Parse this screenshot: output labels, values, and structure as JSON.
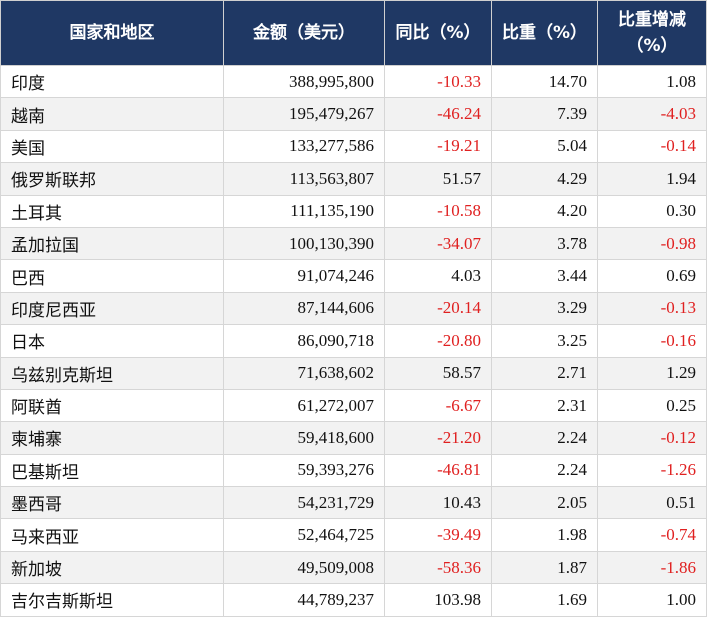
{
  "table": {
    "header": [
      "国家和地区",
      "金额（美元）",
      "同比（%）",
      "比重（%）",
      "比重增减（%）"
    ],
    "rows": [
      [
        "印度",
        "388,995,800",
        "-10.33",
        "14.70",
        "1.08"
      ],
      [
        "越南",
        "195,479,267",
        "-46.24",
        "7.39",
        "-4.03"
      ],
      [
        "美国",
        "133,277,586",
        "-19.21",
        "5.04",
        "-0.14"
      ],
      [
        "俄罗斯联邦",
        "113,563,807",
        "51.57",
        "4.29",
        "1.94"
      ],
      [
        "土耳其",
        "111,135,190",
        "-10.58",
        "4.20",
        "0.30"
      ],
      [
        "孟加拉国",
        "100,130,390",
        "-34.07",
        "3.78",
        "-0.98"
      ],
      [
        "巴西",
        "91,074,246",
        "4.03",
        "3.44",
        "0.69"
      ],
      [
        "印度尼西亚",
        "87,144,606",
        "-20.14",
        "3.29",
        "-0.13"
      ],
      [
        "日本",
        "86,090,718",
        "-20.80",
        "3.25",
        "-0.16"
      ],
      [
        "乌兹别克斯坦",
        "71,638,602",
        "58.57",
        "2.71",
        "1.29"
      ],
      [
        "阿联酋",
        "61,272,007",
        "-6.67",
        "2.31",
        "0.25"
      ],
      [
        "柬埔寨",
        "59,418,600",
        "-21.20",
        "2.24",
        "-0.12"
      ],
      [
        "巴基斯坦",
        "59,393,276",
        "-46.81",
        "2.24",
        "-1.26"
      ],
      [
        "墨西哥",
        "54,231,729",
        "10.43",
        "2.05",
        "0.51"
      ],
      [
        "马来西亚",
        "52,464,725",
        "-39.49",
        "1.98",
        "-0.74"
      ],
      [
        "新加坡",
        "49,509,008",
        "-58.36",
        "1.87",
        "-1.86"
      ],
      [
        "吉尔吉斯斯坦",
        "44,789,237",
        "103.98",
        "1.69",
        "1.00"
      ]
    ]
  }
}
